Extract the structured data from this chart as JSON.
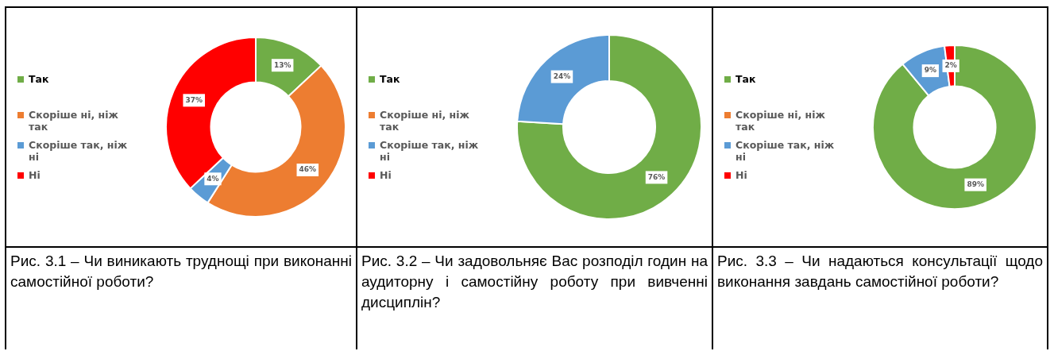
{
  "chart_data": [
    {
      "type": "donut",
      "title": "Рис. 3.1 – Чи виникають труднощі при виконанні самостійної роботи?",
      "categories": [
        "Так",
        "Скоріше ні, ніж так",
        "Скоріше так, ніж ні",
        "Ні"
      ],
      "values": [
        13,
        46,
        4,
        37
      ],
      "colors": [
        "#70ad47",
        "#ed7d31",
        "#5b9bd5",
        "#ff0000"
      ],
      "value_labels": [
        "13%",
        "46%",
        "4%",
        "37%"
      ],
      "legend": "left"
    },
    {
      "type": "donut",
      "title": "Рис. 3.2 – Чи задовольняє Вас розподіл годин на аудиторну і самостійну роботу при вивченні дисциплін?",
      "categories": [
        "Так",
        "Скоріше ні, ніж так",
        "Скоріше так, ніж ні",
        "Ні"
      ],
      "values": [
        76,
        0,
        24,
        0
      ],
      "colors": [
        "#70ad47",
        "#ed7d31",
        "#5b9bd5",
        "#ff0000"
      ],
      "value_labels": [
        "76%",
        null,
        "24%",
        null
      ],
      "legend": "left"
    },
    {
      "type": "donut",
      "title": "Рис. 3.3 – Чи надаються консультації щодо виконання завдань самостійної роботи?",
      "categories": [
        "Так",
        "Скоріше ні, ніж так",
        "Скоріше так, ніж ні",
        "Ні"
      ],
      "values": [
        89,
        0,
        9,
        2
      ],
      "colors": [
        "#70ad47",
        "#ed7d31",
        "#5b9bd5",
        "#ff0000"
      ],
      "value_labels": [
        "89%",
        null,
        "9%",
        "2%"
      ],
      "legend": "left"
    }
  ]
}
